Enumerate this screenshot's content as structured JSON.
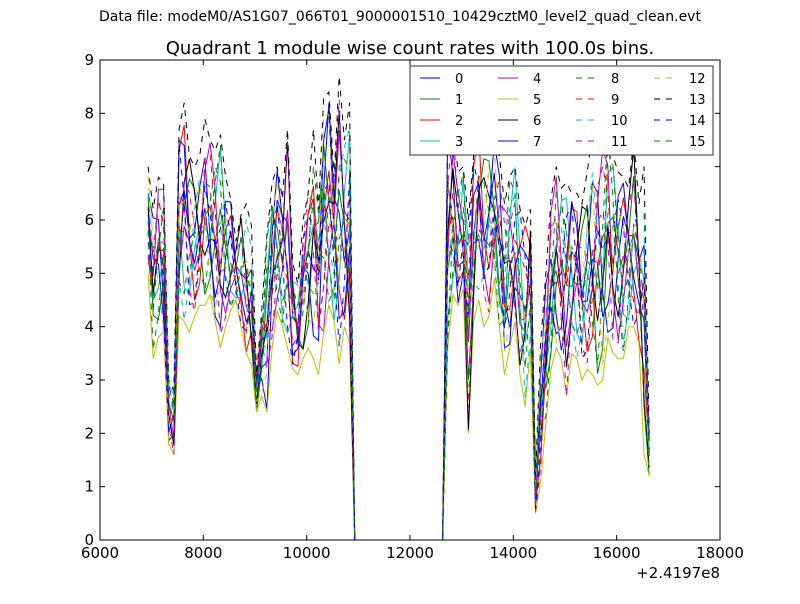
{
  "figure": {
    "suptitle": "Data file: modeM0/AS1G07_066T01_9000001510_10429cztM0_level2_quad_clean.evt"
  },
  "chart_data": {
    "type": "line",
    "title": "Quadrant 1 module wise count rates with 100.0s bins.",
    "xlabel": "",
    "ylabel": "",
    "x_offset_label": "+2.4197e8",
    "xlim": [
      6000,
      18000
    ],
    "ylim": [
      0,
      9
    ],
    "xticks": [
      6000,
      8000,
      10000,
      12000,
      14000,
      16000,
      18000
    ],
    "yticks": [
      0,
      1,
      2,
      3,
      4,
      5,
      6,
      7,
      8,
      9
    ],
    "grid": false,
    "legend": {
      "location": "upper right",
      "columns": 4
    },
    "series": [
      {
        "name": "0",
        "color": "#0000ff",
        "dash": "solid"
      },
      {
        "name": "1",
        "color": "#008000",
        "dash": "solid"
      },
      {
        "name": "2",
        "color": "#ff0000",
        "dash": "solid"
      },
      {
        "name": "3",
        "color": "#00bfbf",
        "dash": "solid"
      },
      {
        "name": "4",
        "color": "#bf00bf",
        "dash": "solid"
      },
      {
        "name": "5",
        "color": "#bfbf00",
        "dash": "solid"
      },
      {
        "name": "6",
        "color": "#000000",
        "dash": "solid"
      },
      {
        "name": "7",
        "color": "#0000ff",
        "dash": "solid"
      },
      {
        "name": "8",
        "color": "#008000",
        "dash": "dashed"
      },
      {
        "name": "9",
        "color": "#ff0000",
        "dash": "dashed"
      },
      {
        "name": "10",
        "color": "#00bfbf",
        "dash": "dashed"
      },
      {
        "name": "11",
        "color": "#bf00bf",
        "dash": "dashed"
      },
      {
        "name": "12",
        "color": "#bfbf00",
        "dash": "dashed"
      },
      {
        "name": "13",
        "color": "#000000",
        "dash": "dashed"
      },
      {
        "name": "14",
        "color": "#0000ff",
        "dash": "dashed"
      },
      {
        "name": "15",
        "color": "#008000",
        "dash": "dashed"
      }
    ],
    "segments": [
      {
        "x_start": 6930,
        "x_end": 10830,
        "step": 100,
        "envelope_low": [
          5.0,
          3.4,
          3.8,
          3.9,
          1.8,
          1.6,
          4.2,
          4.1,
          3.9,
          4.2,
          4.4,
          4.4,
          4.6,
          4.1,
          3.6,
          4.0,
          4.3,
          4.5,
          4.0,
          3.5,
          3.3,
          2.4,
          2.7,
          2.4,
          3.6,
          4.3,
          4.0,
          3.6,
          3.2,
          3.1,
          3.4,
          3.6,
          3.4,
          3.1,
          3.9,
          4.4,
          4.1,
          3.3,
          4.0,
          3.7
        ],
        "envelope_high": [
          7.0,
          6.2,
          6.8,
          6.7,
          3.0,
          2.8,
          7.7,
          8.2,
          7.2,
          7.0,
          7.2,
          7.9,
          7.5,
          7.3,
          7.6,
          6.8,
          6.4,
          5.6,
          6.1,
          6.3,
          5.9,
          3.1,
          4.3,
          5.7,
          6.7,
          7.0,
          6.4,
          7.7,
          5.2,
          4.8,
          6.0,
          6.5,
          7.7,
          6.2,
          8.3,
          8.4,
          6.8,
          8.7,
          7.5,
          8.2
        ],
        "typical": [
          6.0,
          5.0,
          5.6,
          5.3,
          2.5,
          2.2,
          5.8,
          6.0,
          5.7,
          5.6,
          5.8,
          6.2,
          5.9,
          5.6,
          5.3,
          5.2,
          5.0,
          4.9,
          5.0,
          4.6,
          4.4,
          2.8,
          3.6,
          3.9,
          5.3,
          5.6,
          5.2,
          5.4,
          4.3,
          4.0,
          4.9,
          5.4,
          5.6,
          5.0,
          6.1,
          6.3,
          5.7,
          6.3,
          5.8,
          6.0
        ]
      },
      {
        "x_start": 10930,
        "x_end": 12630,
        "step": 100,
        "value": 0.0
      },
      {
        "x_start": 12730,
        "x_end": 16630,
        "step": 100,
        "envelope_low": [
          3.6,
          4.6,
          4.4,
          4.7,
          2.0,
          4.1,
          4.5,
          4.0,
          4.2,
          4.9,
          4.0,
          3.1,
          3.6,
          4.1,
          3.1,
          2.5,
          3.6,
          0.5,
          1.1,
          2.2,
          3.2,
          3.6,
          3.4,
          2.7,
          3.5,
          3.4,
          3.0,
          3.2,
          3.1,
          2.9,
          3.0,
          3.8,
          3.5,
          3.4,
          3.4,
          4.0,
          4.0,
          3.7,
          1.6,
          1.2
        ],
        "envelope_high": [
          7.7,
          7.8,
          6.9,
          7.0,
          6.0,
          7.2,
          8.0,
          7.3,
          7.4,
          7.6,
          7.2,
          6.3,
          6.8,
          7.0,
          6.2,
          5.9,
          6.2,
          1.2,
          3.7,
          5.0,
          6.4,
          7.0,
          6.6,
          6.7,
          6.5,
          6.5,
          6.3,
          6.9,
          7.6,
          7.6,
          7.4,
          8.0,
          7.2,
          6.9,
          6.8,
          6.6,
          7.5,
          6.3,
          7.0,
          2.0
        ],
        "typical": [
          5.6,
          6.2,
          5.6,
          5.8,
          4.0,
          5.6,
          6.2,
          5.6,
          5.8,
          6.2,
          5.6,
          4.7,
          5.2,
          5.5,
          4.6,
          4.2,
          4.9,
          0.8,
          2.4,
          3.6,
          4.8,
          5.3,
          5.0,
          4.7,
          5.0,
          4.9,
          4.6,
          5.0,
          5.3,
          5.2,
          5.2,
          5.9,
          5.3,
          5.1,
          5.1,
          5.3,
          5.7,
          5.0,
          4.3,
          1.6
        ]
      }
    ]
  }
}
